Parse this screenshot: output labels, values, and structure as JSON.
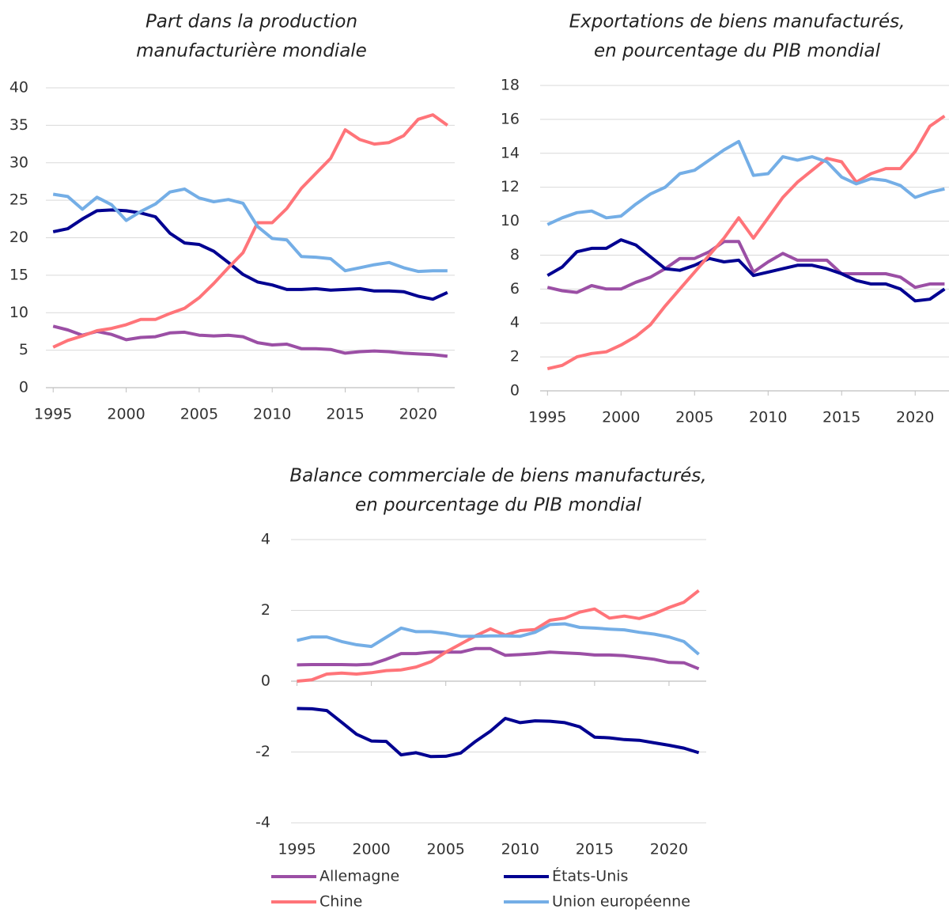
{
  "chart_data": [
    {
      "type": "line",
      "title": [
        "Part dans la production",
        "manufacturière mondiale"
      ],
      "x": [
        1995,
        1996,
        1997,
        1998,
        1999,
        2000,
        2001,
        2002,
        2003,
        2004,
        2005,
        2006,
        2007,
        2008,
        2009,
        2010,
        2011,
        2012,
        2013,
        2014,
        2015,
        2016,
        2017,
        2018,
        2019,
        2020,
        2021,
        2022
      ],
      "xlim": [
        1994.5,
        2022.5
      ],
      "xticks": [
        1995,
        2000,
        2005,
        2010,
        2015,
        2020
      ],
      "ylim": [
        0,
        40
      ],
      "yticks": [
        0,
        5,
        10,
        15,
        20,
        25,
        30,
        35,
        40
      ],
      "grid": true,
      "series": [
        {
          "color": "#9b4fa5",
          "values": [
            8.2,
            7.7,
            7.0,
            7.5,
            7.1,
            6.4,
            6.7,
            6.8,
            7.3,
            7.4,
            7.0,
            6.9,
            7.0,
            6.8,
            6.0,
            5.7,
            5.8,
            5.2,
            5.2,
            5.1,
            4.6,
            4.8,
            4.9,
            4.8,
            4.6,
            4.5,
            4.4,
            4.2
          ]
        },
        {
          "color": "#000091",
          "values": [
            20.8,
            21.2,
            22.5,
            23.6,
            23.7,
            23.6,
            23.3,
            22.8,
            20.6,
            19.3,
            19.1,
            18.2,
            16.7,
            15.1,
            14.1,
            13.7,
            13.1,
            13.1,
            13.2,
            13.0,
            13.1,
            13.2,
            12.9,
            12.9,
            12.8,
            12.2,
            11.8,
            12.7
          ]
        },
        {
          "color": "#ff7479",
          "values": [
            5.4,
            6.3,
            6.9,
            7.6,
            7.9,
            8.4,
            9.1,
            9.1,
            9.9,
            10.6,
            12.0,
            13.9,
            16.0,
            18.0,
            22.0,
            22.0,
            23.9,
            26.6,
            28.6,
            30.6,
            34.4,
            33.1,
            32.5,
            32.7,
            33.6,
            35.8,
            36.4,
            35.0
          ]
        },
        {
          "color": "#74aee6",
          "values": [
            25.8,
            25.5,
            23.8,
            25.4,
            24.4,
            22.3,
            23.5,
            24.5,
            26.1,
            26.5,
            25.3,
            24.8,
            25.1,
            24.6,
            21.5,
            19.9,
            19.7,
            17.5,
            17.4,
            17.2,
            15.6,
            16.0,
            16.4,
            16.7,
            16.0,
            15.5,
            15.6,
            15.6
          ]
        }
      ]
    },
    {
      "type": "line",
      "title": [
        "Exportations de biens manufacturés,",
        "en pourcentage du PIB mondial"
      ],
      "x": [
        1995,
        1996,
        1997,
        1998,
        1999,
        2000,
        2001,
        2002,
        2003,
        2004,
        2005,
        2006,
        2007,
        2008,
        2009,
        2010,
        2011,
        2012,
        2013,
        2014,
        2015,
        2016,
        2017,
        2018,
        2019,
        2020,
        2021,
        2022
      ],
      "xlim": [
        1994.5,
        2022.3
      ],
      "xticks": [
        1995,
        2000,
        2005,
        2010,
        2015,
        2020
      ],
      "ylim": [
        0,
        18
      ],
      "yticks": [
        0,
        2,
        4,
        6,
        8,
        10,
        12,
        14,
        16,
        18
      ],
      "grid": true,
      "series": [
        {
          "color": "#9b4fa5",
          "values": [
            6.1,
            5.9,
            5.8,
            6.2,
            6.0,
            6.0,
            6.4,
            6.7,
            7.2,
            7.8,
            7.8,
            8.2,
            8.8,
            8.8,
            7.0,
            7.6,
            8.1,
            7.7,
            7.7,
            7.7,
            6.9,
            6.9,
            6.9,
            6.9,
            6.7,
            6.1,
            6.3,
            6.3
          ]
        },
        {
          "color": "#000091",
          "values": [
            6.8,
            7.3,
            8.2,
            8.4,
            8.4,
            8.9,
            8.6,
            7.9,
            7.2,
            7.1,
            7.4,
            7.8,
            7.6,
            7.7,
            6.8,
            7.0,
            7.2,
            7.4,
            7.4,
            7.2,
            6.9,
            6.5,
            6.3,
            6.3,
            6.0,
            5.3,
            5.4,
            6.0
          ]
        },
        {
          "color": "#ff7479",
          "values": [
            1.3,
            1.5,
            2.0,
            2.2,
            2.3,
            2.7,
            3.2,
            3.9,
            5.0,
            6.0,
            7.0,
            8.0,
            9.0,
            10.2,
            9.0,
            10.2,
            11.4,
            12.3,
            13.0,
            13.7,
            13.5,
            12.3,
            12.8,
            13.1,
            13.1,
            14.1,
            15.6,
            16.2
          ]
        },
        {
          "color": "#74aee6",
          "values": [
            9.8,
            10.2,
            10.5,
            10.6,
            10.2,
            10.3,
            11.0,
            11.6,
            12.0,
            12.8,
            13.0,
            13.6,
            14.2,
            14.7,
            12.7,
            12.8,
            13.8,
            13.6,
            13.8,
            13.5,
            12.6,
            12.2,
            12.5,
            12.4,
            12.1,
            11.4,
            11.7,
            11.9
          ]
        }
      ]
    },
    {
      "type": "line",
      "title": [
        "Balance commerciale de biens manufacturés,",
        "en pourcentage du PIB mondial"
      ],
      "x": [
        1995,
        1996,
        1997,
        1998,
        1999,
        2000,
        2001,
        2002,
        2003,
        2004,
        2005,
        2006,
        2007,
        2008,
        2009,
        2010,
        2011,
        2012,
        2013,
        2014,
        2015,
        2016,
        2017,
        2018,
        2019,
        2020,
        2021,
        2022
      ],
      "xlim": [
        1994.6,
        2022.5
      ],
      "xticks": [
        1995,
        2000,
        2005,
        2010,
        2015,
        2020
      ],
      "ylim": [
        -4,
        4
      ],
      "yticks": [
        -4,
        -2,
        0,
        2,
        4
      ],
      "grid": true,
      "series": [
        {
          "name": "Allemagne",
          "color": "#9b4fa5",
          "values": [
            0.46,
            0.47,
            0.47,
            0.47,
            0.46,
            0.48,
            0.62,
            0.78,
            0.78,
            0.82,
            0.82,
            0.82,
            0.92,
            0.92,
            0.73,
            0.75,
            0.78,
            0.82,
            0.8,
            0.78,
            0.74,
            0.74,
            0.72,
            0.67,
            0.62,
            0.53,
            0.52,
            0.35
          ]
        },
        {
          "name": "États-Unis",
          "color": "#000091",
          "values": [
            -0.77,
            -0.78,
            -0.83,
            -1.16,
            -1.5,
            -1.69,
            -1.7,
            -2.08,
            -2.02,
            -2.13,
            -2.12,
            -2.03,
            -1.7,
            -1.41,
            -1.05,
            -1.17,
            -1.12,
            -1.13,
            -1.17,
            -1.29,
            -1.58,
            -1.6,
            -1.65,
            -1.67,
            -1.74,
            -1.81,
            -1.89,
            -2.02
          ]
        },
        {
          "name": "Chine",
          "color": "#ff7479",
          "values": [
            0.0,
            0.04,
            0.2,
            0.23,
            0.2,
            0.24,
            0.3,
            0.32,
            0.4,
            0.55,
            0.82,
            1.05,
            1.28,
            1.48,
            1.3,
            1.43,
            1.46,
            1.72,
            1.78,
            1.95,
            2.04,
            1.78,
            1.84,
            1.77,
            1.9,
            2.08,
            2.23,
            2.56
          ]
        },
        {
          "name": "Union européenne",
          "color": "#74aee6",
          "values": [
            1.15,
            1.25,
            1.25,
            1.12,
            1.03,
            0.98,
            1.24,
            1.5,
            1.4,
            1.4,
            1.35,
            1.27,
            1.27,
            1.28,
            1.28,
            1.27,
            1.38,
            1.6,
            1.62,
            1.52,
            1.5,
            1.47,
            1.45,
            1.38,
            1.33,
            1.25,
            1.12,
            0.76
          ]
        }
      ]
    }
  ]
}
